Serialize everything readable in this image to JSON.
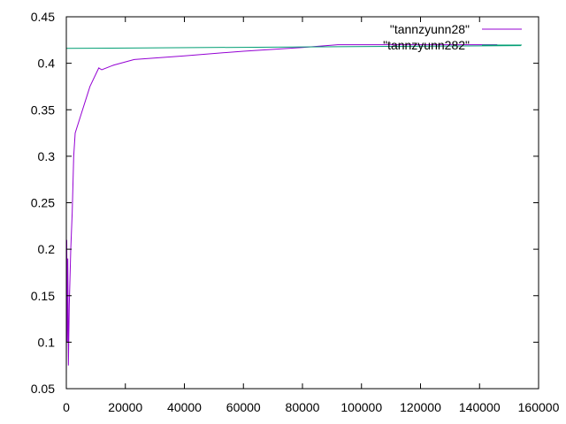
{
  "chart_data": {
    "type": "line",
    "title": "",
    "xlabel": "",
    "ylabel": "",
    "xlim": [
      0,
      160000
    ],
    "ylim": [
      0.05,
      0.45
    ],
    "x_ticks": [
      "0",
      "20000",
      "40000",
      "60000",
      "80000",
      "100000",
      "120000",
      "140000",
      "160000"
    ],
    "y_ticks": [
      "0.05",
      "0.1",
      "0.15",
      "0.2",
      "0.25",
      "0.3",
      "0.35",
      "0.4",
      "0.45"
    ],
    "grid": false,
    "legend_position": "top-right",
    "series": [
      {
        "name": "\"tannzyunn28\"",
        "color": "#9400d3",
        "points": [
          [
            0,
            0.065
          ],
          [
            150,
            0.21
          ],
          [
            300,
            0.1
          ],
          [
            500,
            0.19
          ],
          [
            700,
            0.075
          ],
          [
            1000,
            0.14
          ],
          [
            1500,
            0.2
          ],
          [
            2000,
            0.24
          ],
          [
            2500,
            0.3
          ],
          [
            3000,
            0.325
          ],
          [
            5000,
            0.345
          ],
          [
            8000,
            0.375
          ],
          [
            11000,
            0.395
          ],
          [
            12000,
            0.393
          ],
          [
            16000,
            0.398
          ],
          [
            23000,
            0.404
          ],
          [
            40000,
            0.408
          ],
          [
            60000,
            0.413
          ],
          [
            80000,
            0.417
          ],
          [
            92000,
            0.42
          ],
          [
            120000,
            0.42
          ],
          [
            146000,
            0.42
          ]
        ]
      },
      {
        "name": "\"tannzyunn282\"",
        "color": "#009e73",
        "points": [
          [
            0,
            0.416
          ],
          [
            154000,
            0.419
          ]
        ]
      }
    ]
  }
}
